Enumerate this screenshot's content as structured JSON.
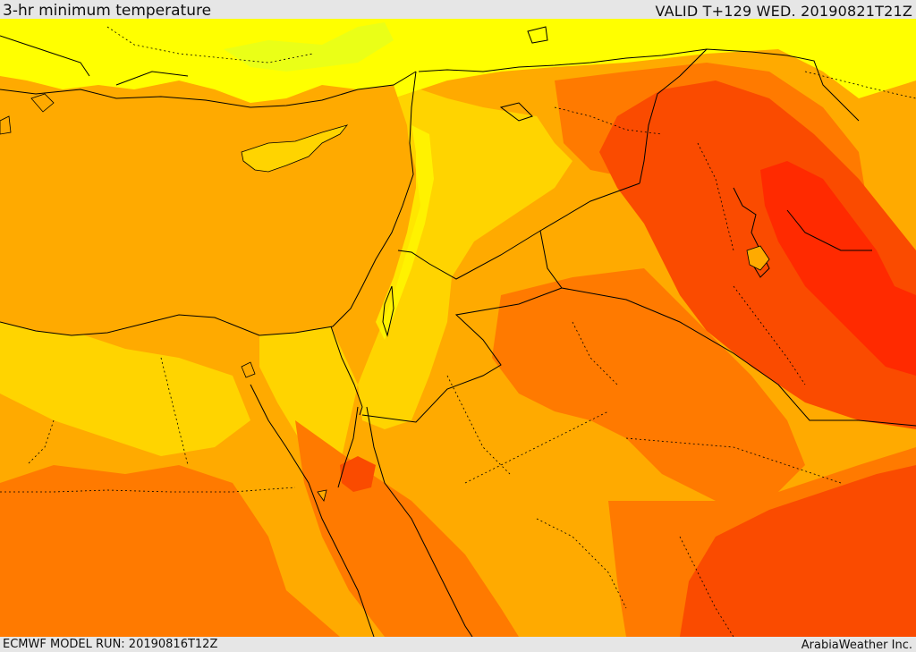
{
  "header": {
    "title": "3-hr minimum temperature",
    "valid": "VALID T+129 WED. 20190821T21Z"
  },
  "footer": {
    "model_run": "ECMWF MODEL RUN: 20190816T12Z",
    "credit": "ArabiaWeather Inc."
  },
  "colors": {
    "hottest": "#ff2a00",
    "very_hot": "#fa4b00",
    "hot": "#ff7a00",
    "warm": "#ffaa00",
    "mild": "#ffd400",
    "cool": "#ffff00",
    "cooler": "#d8ff2a",
    "sea": "#ffaa00",
    "border": "#000000",
    "frame": "#e6e6e6"
  },
  "map": {
    "region": "Eastern Mediterranean and Middle East",
    "field": "3-hr minimum temperature"
  }
}
